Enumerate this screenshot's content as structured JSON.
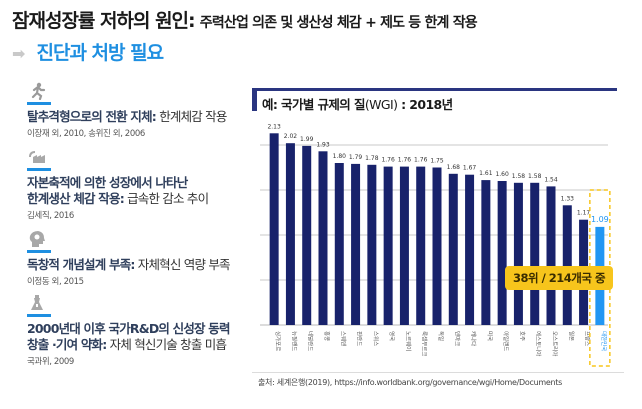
{
  "header": {
    "title_main": "잠재성장률 저하의 원인:",
    "title_sub": "주력산업 의존 및 생산성 체감 + 제도 등 한계 작용",
    "arrow_icon": "right-arrow-icon",
    "subtitle": "진단과 처방 필요"
  },
  "causes": [
    {
      "icon": "running-person-icon",
      "bold": "탈추격형으로의 전환 지체:",
      "rest": " 한계체감 작용",
      "bold2": "",
      "ref": "이장재 외, 2010, 송위진 외, 2006"
    },
    {
      "icon": "factory-icon",
      "bold": "자본축적에 의한 성장에서 나타난",
      "bold2": "한계생산 체감 작용:",
      "rest": " 급속한 감소 추이",
      "ref": "김세직, 2016"
    },
    {
      "icon": "head-lightbulb-icon",
      "bold": "독창적 개념설계 부족:",
      "rest": " 자체혁신 역량 부족",
      "bold2": "",
      "ref": "이정동 외, 2015"
    },
    {
      "icon": "lab-flask-icon",
      "bold": "2000년대 이후 국가R&D의 신성장 동력",
      "bold2": "창출 ·기여 약화:",
      "rest": " 자체 혁신기술 창출 미흡",
      "ref": "국과위, 2009"
    }
  ],
  "colors": {
    "bar": "#18226b",
    "highlight": "#2196f3",
    "badge": "#f7c51c",
    "accent": "#1e8fe1"
  },
  "chart_data": {
    "type": "bar",
    "title": "예: 국가별 규제의 질(WGI) : 2018년",
    "title_prefix": "예: 국가별 규제의 질",
    "title_wgi": "(WGI)",
    "title_suffix": " : 2018년",
    "categories": [
      "싱가포르",
      "뉴질랜드",
      "네덜란드",
      "홍콩",
      "스웨덴",
      "핀란드",
      "스위스",
      "영국",
      "노르웨이",
      "룩셈부르크",
      "독일",
      "덴마크",
      "캐나다",
      "미국",
      "아일랜드",
      "호주",
      "에스토니아",
      "오스트리아",
      "일본",
      "프랑스",
      "대한민국"
    ],
    "values": [
      2.13,
      2.02,
      1.99,
      1.93,
      1.8,
      1.79,
      1.78,
      1.76,
      1.76,
      1.76,
      1.75,
      1.68,
      1.67,
      1.61,
      1.6,
      1.58,
      1.58,
      1.54,
      1.33,
      1.17,
      1.09
    ],
    "value_labels": [
      "2.13",
      "2.02",
      "1.99",
      "1.93",
      "1.80",
      "1.79",
      "1.78",
      "1.76",
      "1.76",
      "1.76",
      "1.75",
      "1.68",
      "1.67",
      "1.61",
      "1.60",
      "1.58",
      "1.58",
      "1.54",
      "1.33",
      "1.17",
      "1.09"
    ],
    "highlight_index": 20,
    "ylim": [
      0,
      2.5
    ],
    "gridlines": [
      0.5,
      1.0,
      1.5,
      2.0
    ],
    "grid": true,
    "xlabel": "",
    "ylabel": "",
    "annotation": "38위 / 214개국 중",
    "source": "출처: 세계은행(2019), https://info.worldbank.org/governance/wgi/Home/Documents"
  }
}
